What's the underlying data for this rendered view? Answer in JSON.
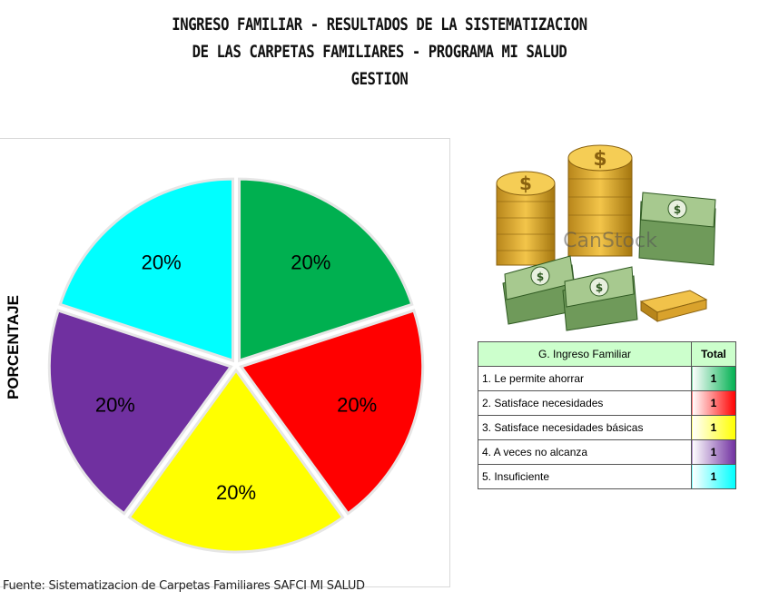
{
  "title_lines": [
    "INGRESO FAMILIAR - RESULTADOS DE LA SISTEMATIZACION",
    "DE LAS CARPETAS FAMILIARES - PROGRAMA MI SALUD",
    "GESTION"
  ],
  "ylabel": "PORCENTAJE",
  "source": "Fuente: Sistematizacion de Carpetas Familiares SAFCI MI SALUD",
  "watermark": "CanStock",
  "chart_data": {
    "type": "pie",
    "labels": [
      "1. Le permite ahorrar",
      "2. Satisface necesidades",
      "3. Satisface necesidades básicas",
      "4. A veces no alcanza",
      "5. Insuficiente"
    ],
    "values": [
      1,
      1,
      1,
      1,
      1
    ],
    "data_labels": [
      "20%",
      "20%",
      "20%",
      "20%",
      "20%"
    ],
    "colors": [
      "#00b050",
      "#ff0000",
      "#ffff00",
      "#7030a0",
      "#00ffff"
    ]
  },
  "legend_table": {
    "header_label": "G. Ingreso Familiar",
    "header_total": "Total",
    "rows": [
      {
        "label": "1. Le permite ahorrar",
        "total": "1",
        "color": "#00b050"
      },
      {
        "label": "2. Satisface necesidades",
        "total": "1",
        "color": "#ff0000"
      },
      {
        "label": "3. Satisface necesidades básicas",
        "total": "1",
        "color": "#ffff00"
      },
      {
        "label": "4. A veces no alcanza",
        "total": "1",
        "color": "#7030a0"
      },
      {
        "label": "5. Insuficiente",
        "total": "1",
        "color": "#00ffff"
      }
    ]
  },
  "illustration": "money-coins-bills-icon"
}
